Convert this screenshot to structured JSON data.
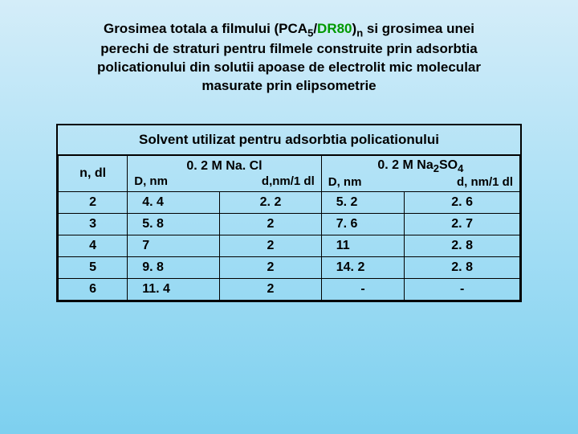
{
  "title": {
    "line1_pre": "Grosimea totala a filmului (PCA",
    "sub1": "5",
    "slash": "/",
    "dr": "DR80",
    "close": ")",
    "subn": "n",
    "line1_post": " si grosimea unei",
    "line2": "perechi de straturi pentru filmele construite prin adsorbtia",
    "line3": "policationului din solutii apoase de electrolit mic molecular",
    "line4": "masurate prin elipsometrie"
  },
  "table": {
    "merged_header": "Solvent utilizat pentru adsorbtia policationului",
    "col_n": "n, dl",
    "group1": {
      "title_pre": "0. 2 M Na. Cl",
      "sub1": "D, nm",
      "sub2": "d,nm/1 dl"
    },
    "group2": {
      "title_pre": "0. 2 M Na",
      "title_sub": "2",
      "title_post": "SO",
      "title_sub2": "4",
      "sub1": "D, nm",
      "sub2": "d, nm/1 dl"
    },
    "rows": [
      {
        "n": "2",
        "d1": "4. 4",
        "d2": "2. 2",
        "d3": "5. 2",
        "d4": "2. 6"
      },
      {
        "n": "3",
        "d1": "5. 8",
        "d2": "2",
        "d3": "7. 6",
        "d4": "2. 7"
      },
      {
        "n": "4",
        "d1": "7",
        "d2": "2",
        "d3": "11",
        "d4": "2. 8"
      },
      {
        "n": "5",
        "d1": "9. 8",
        "d2": "2",
        "d3": "14. 2",
        "d4": "2. 8"
      },
      {
        "n": "6",
        "d1": "11. 4",
        "d2": "2",
        "d3": "-",
        "d4": "-"
      }
    ]
  },
  "colors": {
    "dr_green": "#009900",
    "border": "#000000"
  }
}
